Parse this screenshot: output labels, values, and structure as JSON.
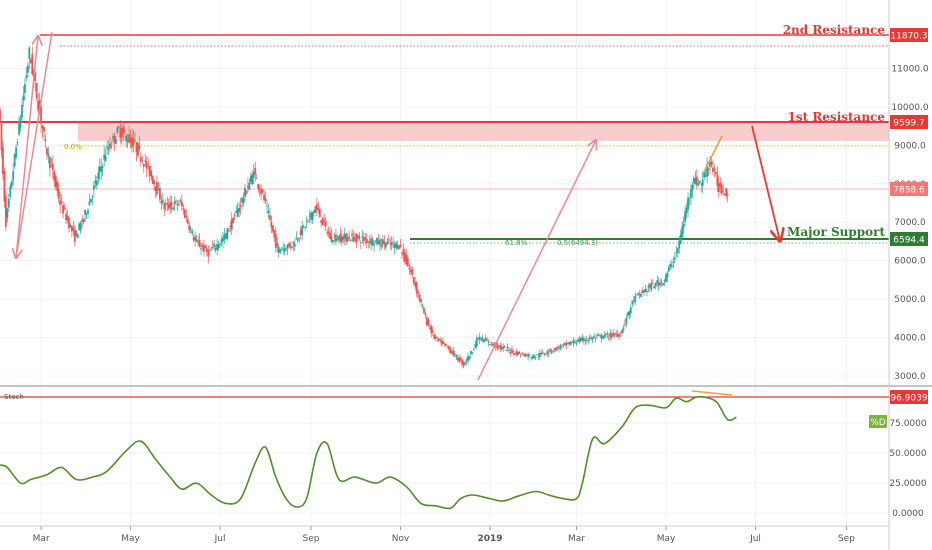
{
  "colors": {
    "up": "#26a69a",
    "down": "#ef5350",
    "resistance": "#e53935",
    "support": "#2e7d32",
    "stoch": "#558b2f",
    "orange": "#e6a23c",
    "pink_arrow": "#e88a95",
    "price_line": "#f4a3a3"
  },
  "levels": {
    "resistance2": {
      "label": "2nd Resistance",
      "value": "11870.3"
    },
    "resistance1": {
      "label": "1st Resistance",
      "value": "9599.7"
    },
    "support": {
      "label": "Major Support",
      "value": "6594.4"
    },
    "current": {
      "value": "7858.6"
    }
  },
  "fib": {
    "a": "61.8%",
    "b": "0.5(6494.3)",
    "c": "0.0%"
  },
  "stoch": {
    "title": "Stoch",
    "value": "96.9039",
    "badge": "%D"
  },
  "chart_data": [
    {
      "type": "candlestick",
      "title": "",
      "y_axis": {
        "ticks": [
          "11000.0",
          "10000.0",
          "9000.0",
          "8000.0",
          "7000.0",
          "6000.0",
          "5000.0",
          "4000.0",
          "3000.0"
        ],
        "ylim": [
          2800,
          12400
        ]
      },
      "x_axis": {
        "ticks": [
          "Mar",
          "May",
          "Jul",
          "Sep",
          "Nov",
          "2019",
          "Mar",
          "May",
          "Jul",
          "Sep"
        ],
        "range": [
          "2018-02-01",
          "2019-09-30"
        ]
      },
      "horizontal_levels": [
        11870.3,
        11500,
        9599.7,
        9050,
        7858.6,
        6594.4,
        6500
      ],
      "resistance_zone": [
        9100,
        9599.7
      ],
      "series": [
        {
          "x": [
            "2018-02-01",
            "2018-02-06",
            "2018-02-15",
            "2018-02-22",
            "2018-03-05",
            "2018-03-15",
            "2018-03-25",
            "2018-04-01",
            "2018-04-08",
            "2018-04-15",
            "2018-04-24",
            "2018-05-05",
            "2018-05-15",
            "2018-05-25",
            "2018-06-05",
            "2018-06-15",
            "2018-06-24",
            "2018-07-05",
            "2018-07-15",
            "2018-07-25",
            "2018-08-01",
            "2018-08-10",
            "2018-08-20",
            "2018-09-01",
            "2018-09-05",
            "2018-09-15",
            "2018-10-01",
            "2018-10-15",
            "2018-11-01",
            "2018-11-10",
            "2018-11-20",
            "2018-11-25",
            "2018-12-05",
            "2018-12-15",
            "2018-12-20",
            "2018-12-25",
            "2019-01-05",
            "2019-01-20",
            "2019-02-01",
            "2019-02-15",
            "2019-03-01",
            "2019-03-15",
            "2019-04-01",
            "2019-04-10",
            "2019-04-20",
            "2019-05-01",
            "2019-05-10",
            "2019-05-15",
            "2019-05-20",
            "2019-05-26",
            "2019-06-01",
            "2019-06-07",
            "2019-06-12"
          ],
          "values": [
            10100,
            7000,
            9500,
            11400,
            9000,
            7500,
            6600,
            7200,
            8000,
            8800,
            9400,
            9000,
            8300,
            7400,
            7500,
            6500,
            6200,
            6600,
            7400,
            8300,
            7600,
            6300,
            6400,
            7100,
            7400,
            6600,
            6600,
            6500,
            6400,
            5600,
            4400,
            4000,
            3700,
            3300,
            3600,
            4000,
            3800,
            3600,
            3500,
            3700,
            3900,
            4000,
            4100,
            5000,
            5300,
            5500,
            6300,
            7200,
            8100,
            8000,
            8600,
            7900,
            7800
          ]
        }
      ]
    },
    {
      "type": "line",
      "title": "Stoch",
      "y_axis": {
        "ticks": [
          "75.0000",
          "50.0000",
          "25.0000",
          "0.0000"
        ],
        "ylim": [
          -8,
          100
        ]
      },
      "horizontal_levels": [
        96.9039
      ],
      "series": [
        {
          "name": "%D",
          "x": [
            "2018-02-01",
            "2018-02-06",
            "2018-02-15",
            "2018-02-22",
            "2018-03-05",
            "2018-03-15",
            "2018-03-25",
            "2018-04-05",
            "2018-04-15",
            "2018-04-28",
            "2018-05-08",
            "2018-05-18",
            "2018-05-28",
            "2018-06-05",
            "2018-06-15",
            "2018-06-25",
            "2018-07-05",
            "2018-07-15",
            "2018-07-25",
            "2018-08-01",
            "2018-08-08",
            "2018-08-15",
            "2018-08-22",
            "2018-08-29",
            "2018-09-05",
            "2018-09-12",
            "2018-09-20",
            "2018-10-01",
            "2018-10-15",
            "2018-10-25",
            "2018-11-05",
            "2018-11-15",
            "2018-11-25",
            "2018-12-05",
            "2018-12-12",
            "2018-12-20",
            "2019-01-01",
            "2019-01-10",
            "2019-01-20",
            "2019-02-01",
            "2019-02-10",
            "2019-02-20",
            "2019-03-01",
            "2019-03-05",
            "2019-03-12",
            "2019-03-20",
            "2019-04-01",
            "2019-04-10",
            "2019-04-20",
            "2019-05-01",
            "2019-05-08",
            "2019-05-15",
            "2019-05-22",
            "2019-05-30",
            "2019-06-05",
            "2019-06-12",
            "2019-06-18"
          ],
          "values": [
            40,
            38,
            25,
            28,
            32,
            38,
            28,
            30,
            35,
            52,
            60,
            45,
            30,
            20,
            25,
            15,
            8,
            12,
            42,
            55,
            30,
            12,
            5,
            12,
            50,
            58,
            28,
            30,
            25,
            30,
            22,
            8,
            6,
            4,
            12,
            15,
            12,
            10,
            14,
            18,
            15,
            12,
            12,
            25,
            62,
            58,
            72,
            88,
            90,
            88,
            96,
            93,
            97,
            96,
            92,
            78,
            80
          ]
        }
      ]
    }
  ]
}
